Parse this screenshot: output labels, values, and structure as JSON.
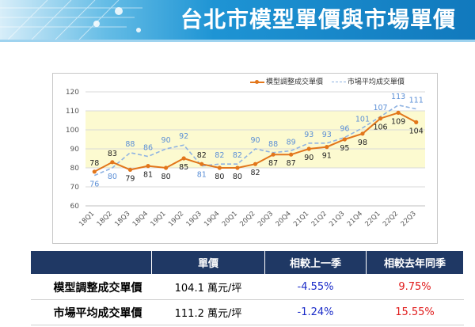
{
  "header": {
    "title": "台北市模型單價與市場單價"
  },
  "colors": {
    "model_series": "#e2761b",
    "market_series": "#8fb3e2",
    "plot_band": "#fcfad0",
    "table_header": "#1f3864",
    "negative": "#1a2bc8",
    "positive": "#e01b1b"
  },
  "chart_data": {
    "type": "line",
    "x": [
      "18Q1",
      "18Q2",
      "18Q3",
      "18Q4",
      "19Q1",
      "19Q2",
      "19Q3",
      "19Q4",
      "20Q1",
      "20Q2",
      "20Q3",
      "20Q4",
      "21Q1",
      "21Q2",
      "21Q3",
      "21Q4",
      "22Q1",
      "22Q2",
      "22Q3"
    ],
    "series": [
      {
        "name": "模型調整成交單價",
        "values": [
          78,
          83,
          79,
          81,
          80,
          85,
          82,
          80,
          80,
          82,
          87,
          87,
          90,
          91,
          95,
          98,
          106,
          109,
          104
        ]
      },
      {
        "name": "市場平均成交單價",
        "values": [
          76,
          80,
          88,
          86,
          90,
          92,
          81,
          82,
          82,
          90,
          88,
          89,
          93,
          93,
          96,
          101,
          107,
          113,
          111
        ]
      }
    ],
    "yticks": [
      60,
      70,
      80,
      90,
      100,
      110,
      120
    ],
    "ylim": [
      60,
      120
    ],
    "grid": true,
    "legend_position": "top-right"
  },
  "table": {
    "headers": [
      "",
      "單價",
      "相較上一季",
      "相較去年同季"
    ],
    "rows": [
      {
        "label": "模型調整成交單價",
        "price": "104.1 萬元/坪",
        "qoq": "-4.55%",
        "yoy": "9.75%"
      },
      {
        "label": "市場平均成交單價",
        "price": "111.2 萬元/坪",
        "qoq": "-1.24%",
        "yoy": "15.55%"
      }
    ]
  }
}
